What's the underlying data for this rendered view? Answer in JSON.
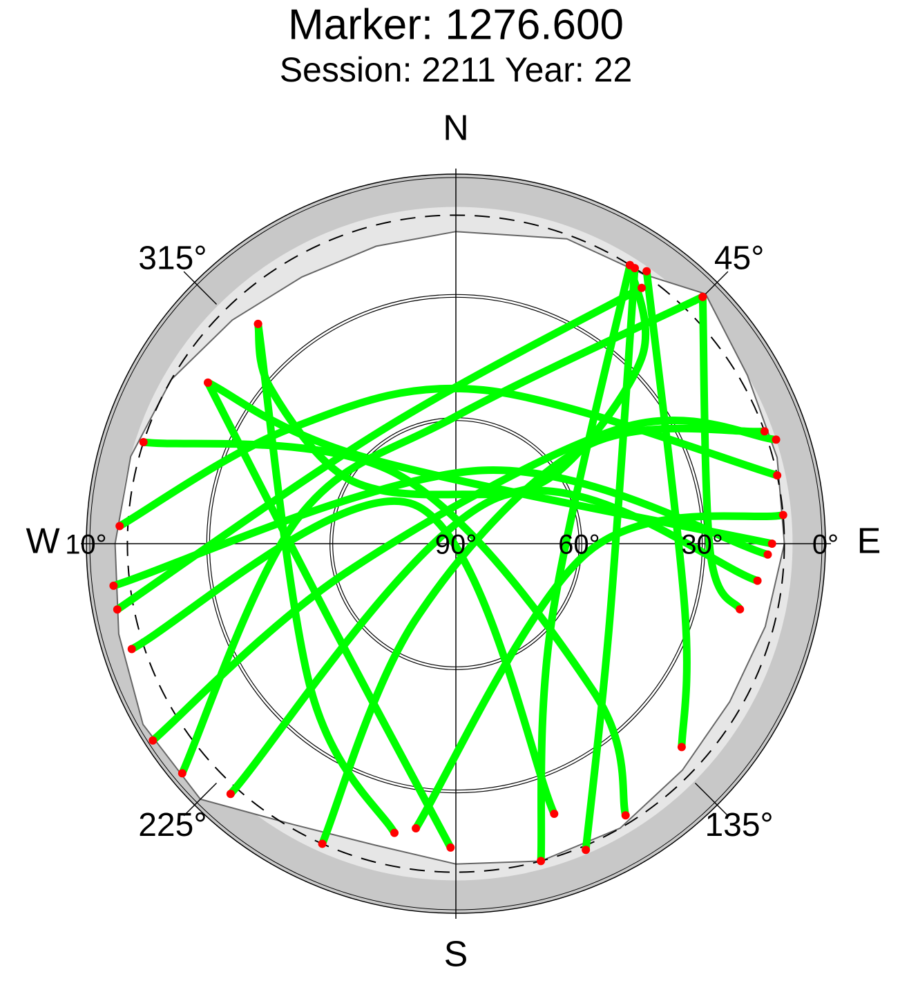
{
  "chart_data": {
    "type": "skyplot",
    "title": "Marker: 1276.600",
    "subtitle": "Session: 2211 Year: 22",
    "rlim": [
      90,
      0
    ],
    "directions": [
      {
        "value": 0,
        "label": "N"
      },
      {
        "value": 90,
        "label": "E"
      },
      {
        "value": 180,
        "label": "S"
      },
      {
        "value": 270,
        "label": "W"
      }
    ],
    "azimuth_ticks": [
      {
        "value": 45,
        "label": "45°"
      },
      {
        "value": 135,
        "label": "135°"
      },
      {
        "value": 225,
        "label": "225°"
      },
      {
        "value": 315,
        "label": "315°"
      }
    ],
    "elevation_ticks": [
      {
        "value": 90,
        "label": "90°"
      },
      {
        "value": 60,
        "label": "60°"
      },
      {
        "value": 30,
        "label": "30°"
      },
      {
        "value": 0,
        "label": "0°"
      }
    ],
    "west_elevation_tick": {
      "value": 10,
      "label": "10°"
    },
    "cutoff_elevation": 10,
    "horizon_band": [
      0,
      8
    ],
    "mask": {
      "az": [
        0,
        20,
        35,
        45,
        60,
        75,
        90,
        105,
        120,
        135,
        150,
        165,
        180,
        195,
        210,
        225,
        240,
        255,
        270,
        285,
        300,
        315,
        330,
        345,
        360
      ],
      "el": [
        14,
        11,
        10,
        4,
        8,
        9,
        10,
        12,
        13,
        12,
        10,
        10,
        12,
        14,
        11,
        2,
        2,
        5,
        7,
        8,
        10,
        13,
        15,
        15,
        14
      ]
    },
    "track_color": "#00ff00",
    "endpoint_color": "#ff0000",
    "tracks": [
      {
        "az": [
          318,
          310,
          301,
          0,
          55,
          45,
          32
        ],
        "el": [
          18,
          31,
          59,
          78,
          61,
          26,
          10
        ]
      },
      {
        "az": [
          303,
          238,
          181
        ],
        "el": [
          18,
          54,
          16
        ]
      },
      {
        "az": [
          288,
          320,
          137,
          148
        ],
        "el": [
          10,
          68,
          41,
          12
        ]
      },
      {
        "az": [
          70,
          53,
          208,
          204
        ],
        "el": [
          10,
          51,
          69,
          10
        ]
      },
      {
        "az": [
          273,
          305,
          10,
          78
        ],
        "el": [
          8,
          41,
          52,
          10
        ]
      },
      {
        "az": [
          237,
          255,
          55,
          72
        ],
        "el": [
          2,
          62,
          41,
          8
        ]
      },
      {
        "az": [
          259,
          329,
          36
        ],
        "el": [
          6,
          57,
          13
        ]
      },
      {
        "az": [
          97,
          42,
          222
        ],
        "el": [
          16,
          75,
          8
        ]
      },
      {
        "az": [
          85,
          94,
          188
        ],
        "el": [
          10,
          58,
          20
        ]
      },
      {
        "az": [
          318,
          225,
          192
        ],
        "el": [
          18,
          40,
          18
        ]
      },
      {
        "az": [
          32,
          129,
          165
        ],
        "el": [
          10,
          60,
          10
        ]
      },
      {
        "az": [
          33,
          117,
          157
        ],
        "el": [
          10,
          48,
          9
        ]
      },
      {
        "az": [
          35,
          106,
          132
        ],
        "el": [
          9,
          32,
          16
        ]
      },
      {
        "az": [
          45,
          92,
          103
        ],
        "el": [
          5,
          28,
          19
        ]
      },
      {
        "az": [
          92,
          20,
          263
        ],
        "el": [
          14,
          71,
          6
        ]
      },
      {
        "az": [
          303,
          314,
          90
        ],
        "el": [
          18,
          60,
          13
        ]
      },
      {
        "az": [
          230,
          279,
          0,
          45
        ],
        "el": [
          3,
          51,
          59,
          5
        ]
      },
      {
        "az": [
          252,
          313,
          160
        ],
        "el": [
          7,
          76,
          20
        ]
      }
    ]
  }
}
